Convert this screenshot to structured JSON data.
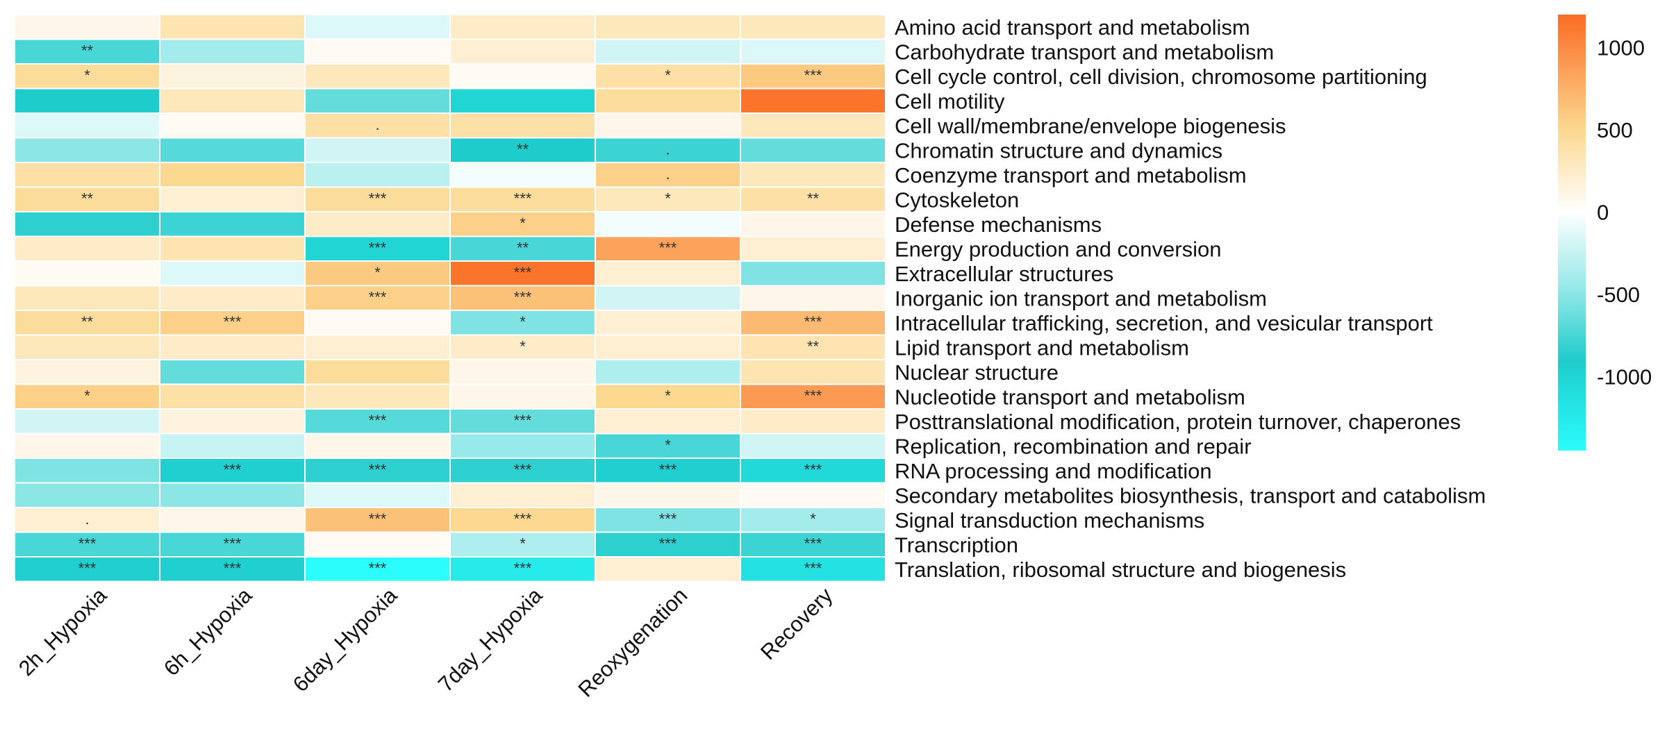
{
  "chart_data": {
    "type": "heatmap",
    "columns": [
      "2h_Hypoxia",
      "6h_Hypoxia",
      "6day_Hypoxia",
      "7day_Hypoxia",
      "Reoxygenation",
      "Recovery"
    ],
    "rows": [
      "Amino acid transport and metabolism",
      "Carbohydrate transport and metabolism",
      "Cell cycle control, cell division, chromosome partitioning",
      "Cell motility",
      "Cell wall/membrane/envelope biogenesis",
      "Chromatin structure and dynamics",
      "Coenzyme transport and metabolism",
      "Cytoskeleton",
      "Defense mechanisms",
      "Energy production and conversion",
      "Extracellular structures",
      "Inorganic ion transport and metabolism",
      "Intracellular trafficking, secretion, and vesicular transport",
      "Lipid transport and metabolism",
      "Nuclear structure",
      "Nucleotide transport and metabolism",
      "Posttranslational modification, protein turnover, chaperones",
      "Replication, recombination and repair",
      "RNA processing and modification",
      "Secondary metabolites biosynthesis, transport and catabolism",
      "Signal transduction mechanisms",
      "Transcription",
      "Translation, ribosomal structure and biogenesis"
    ],
    "values": [
      [
        100,
        350,
        -150,
        250,
        300,
        300
      ],
      [
        -750,
        -400,
        50,
        200,
        -200,
        -150
      ],
      [
        450,
        150,
        300,
        50,
        400,
        600
      ],
      [
        -900,
        300,
        -650,
        -1000,
        450,
        1150
      ],
      [
        -150,
        50,
        400,
        400,
        100,
        300
      ],
      [
        -500,
        -700,
        -200,
        -900,
        -800,
        -650
      ],
      [
        400,
        500,
        -300,
        -50,
        550,
        300
      ],
      [
        450,
        200,
        450,
        450,
        300,
        400
      ],
      [
        -850,
        -800,
        250,
        550,
        -50,
        100
      ],
      [
        250,
        350,
        -1000,
        -750,
        850,
        200
      ],
      [
        50,
        -150,
        600,
        1150,
        200,
        -550
      ],
      [
        300,
        250,
        550,
        650,
        -200,
        100
      ],
      [
        450,
        550,
        50,
        -550,
        200,
        700
      ],
      [
        300,
        250,
        200,
        250,
        200,
        350
      ],
      [
        150,
        -650,
        450,
        100,
        -350,
        350
      ],
      [
        550,
        400,
        300,
        100,
        500,
        900
      ],
      [
        -200,
        150,
        -700,
        -650,
        200,
        250
      ],
      [
        100,
        -250,
        100,
        -450,
        -750,
        -200
      ],
      [
        -550,
        -950,
        -850,
        -850,
        -950,
        -1050
      ],
      [
        -500,
        -500,
        -150,
        200,
        100,
        50
      ],
      [
        200,
        100,
        650,
        500,
        -550,
        -400
      ],
      [
        -750,
        -750,
        50,
        -350,
        -850,
        -800
      ],
      [
        -950,
        -950,
        -1450,
        -1250,
        200,
        -1150
      ]
    ],
    "significance": [
      [
        "",
        "",
        "",
        "",
        "",
        ""
      ],
      [
        "**",
        "",
        "",
        "",
        "",
        ""
      ],
      [
        "*",
        "",
        "",
        "",
        "*",
        "***"
      ],
      [
        "",
        "",
        "",
        "",
        "",
        ""
      ],
      [
        "",
        "",
        ".",
        "",
        "",
        ""
      ],
      [
        "",
        "",
        "",
        "**",
        ".",
        ""
      ],
      [
        "",
        "",
        "",
        "",
        ".",
        ""
      ],
      [
        "**",
        "",
        "***",
        "***",
        "*",
        "**"
      ],
      [
        "",
        "",
        "",
        "*",
        "",
        ""
      ],
      [
        "",
        "",
        "***",
        "**",
        "***",
        ""
      ],
      [
        "",
        "",
        "*",
        "***",
        "",
        ""
      ],
      [
        "",
        "",
        "***",
        "***",
        "",
        ""
      ],
      [
        "**",
        "***",
        "",
        "*",
        "",
        "***"
      ],
      [
        "",
        "",
        "",
        "*",
        "",
        "**"
      ],
      [
        "",
        "",
        "",
        "",
        "",
        ""
      ],
      [
        "*",
        "",
        "",
        "",
        "*",
        "***"
      ],
      [
        "",
        "",
        "***",
        "***",
        "",
        ""
      ],
      [
        "",
        "",
        "",
        "",
        "*",
        ""
      ],
      [
        "",
        "***",
        "***",
        "***",
        "***",
        "***"
      ],
      [
        "",
        "",
        "",
        "",
        "",
        ""
      ],
      [
        ".",
        "",
        "***",
        "***",
        "***",
        "*"
      ],
      [
        "***",
        "***",
        "",
        "*",
        "***",
        "***"
      ],
      [
        "***",
        "***",
        "***",
        "***",
        "",
        "***"
      ]
    ],
    "color_scale": {
      "min": -1450,
      "max": 1200,
      "stops": [
        {
          "value": -1450,
          "color": "#2bfcfc"
        },
        {
          "value": -900,
          "color": "#1fcccc"
        },
        {
          "value": -500,
          "color": "#8de6e6"
        },
        {
          "value": 0,
          "color": "#ffffff"
        },
        {
          "value": 500,
          "color": "#fcd890"
        },
        {
          "value": 1200,
          "color": "#fb6c23"
        }
      ],
      "ticks": [
        "1000",
        "500",
        "0",
        "-500",
        "-1000"
      ],
      "tick_values": [
        1000,
        500,
        0,
        -500,
        -1000
      ]
    },
    "grid_line_color": "#ffffff",
    "legend_position": "right"
  }
}
